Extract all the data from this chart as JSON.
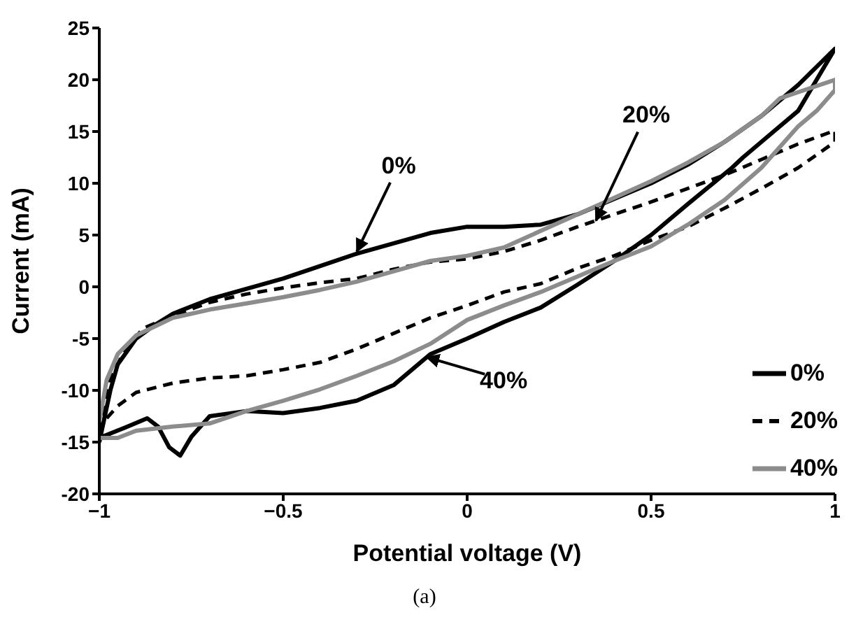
{
  "chart_data": {
    "type": "line",
    "xlabel": "Potential voltage (V)",
    "ylabel": "Current (mA)",
    "xlim": [
      -1,
      1
    ],
    "xticks": [
      {
        "value": -1,
        "label": "−1"
      },
      {
        "value": -0.5,
        "label": "−0.5"
      },
      0,
      0.5,
      1
    ],
    "ylim": [
      -20,
      25
    ],
    "yticks": [
      -20,
      -15,
      -10,
      -5,
      0,
      5,
      10,
      15,
      20,
      25
    ],
    "grid": false,
    "legend": "bottom right",
    "marker": "none",
    "series": [
      {
        "name": "0%",
        "color": "#000000",
        "line_style": "solid",
        "x": [
          -1,
          -0.97,
          -0.95,
          -0.9,
          -0.85,
          -0.8,
          -0.7,
          -0.6,
          -0.5,
          -0.4,
          -0.3,
          -0.2,
          -0.1,
          0,
          0.1,
          0.2,
          0.3,
          0.4,
          0.5,
          0.6,
          0.7,
          0.8,
          0.9,
          1,
          0.95,
          0.9,
          0.8,
          0.75,
          0.72,
          0.6,
          0.5,
          0.4,
          0.3,
          0.2,
          0.1,
          0,
          -0.1,
          -0.2,
          -0.3,
          -0.4,
          -0.5,
          -0.6,
          -0.7,
          -0.75,
          -0.78,
          -0.81,
          -0.84,
          -0.87,
          -0.93,
          -1
        ],
        "values": [
          -15,
          -10,
          -7.5,
          -5,
          -3.7,
          -2.6,
          -1.2,
          -0.2,
          0.8,
          2,
          3.2,
          4.2,
          5.2,
          5.8,
          5.8,
          6,
          7,
          8.5,
          10,
          11.8,
          14,
          16.5,
          19.5,
          23,
          20,
          17,
          14,
          12.5,
          11.5,
          8,
          5,
          2.5,
          0.2,
          -2,
          -3.4,
          -5,
          -6.5,
          -9.5,
          -11,
          -11.7,
          -12.2,
          -12,
          -12.5,
          -14.5,
          -16.3,
          -15.5,
          -13.5,
          -12.7,
          -13.6,
          -14.6
        ]
      },
      {
        "name": "20%",
        "color": "#000000",
        "line_style": "dashed",
        "x": [
          -1,
          -0.97,
          -0.93,
          -0.88,
          -0.8,
          -0.7,
          -0.6,
          -0.5,
          -0.4,
          -0.3,
          -0.2,
          -0.1,
          0,
          0.1,
          0.2,
          0.3,
          0.4,
          0.5,
          0.6,
          0.7,
          0.8,
          0.9,
          1,
          1,
          0.9,
          0.8,
          0.7,
          0.6,
          0.5,
          0.4,
          0.3,
          0.2,
          0.1,
          0,
          -0.1,
          -0.2,
          -0.3,
          -0.4,
          -0.5,
          -0.6,
          -0.7,
          -0.8,
          -0.9,
          -0.95,
          -1
        ],
        "values": [
          -14,
          -9,
          -6,
          -4,
          -2.8,
          -1.5,
          -0.7,
          -0.1,
          0.4,
          0.8,
          1.7,
          2.4,
          2.7,
          3.4,
          4.5,
          5.8,
          7,
          8.2,
          9.5,
          10.8,
          12.3,
          13.8,
          15.1,
          14,
          11.5,
          9.5,
          7.6,
          5.8,
          4.5,
          3,
          1.8,
          0.3,
          -0.5,
          -1.8,
          -3,
          -4.5,
          -6,
          -7.3,
          -8,
          -8.6,
          -8.8,
          -9.3,
          -10.2,
          -11.5,
          -13.5
        ]
      },
      {
        "name": "40%",
        "color": "#8c8c8c",
        "line_style": "solid",
        "x": [
          -1,
          -0.98,
          -0.95,
          -0.9,
          -0.8,
          -0.7,
          -0.6,
          -0.5,
          -0.4,
          -0.3,
          -0.2,
          -0.1,
          0,
          0.1,
          0.2,
          0.3,
          0.4,
          0.5,
          0.6,
          0.7,
          0.8,
          0.85,
          0.9,
          1,
          1,
          0.95,
          0.9,
          0.8,
          0.7,
          0.6,
          0.5,
          0.4,
          0.3,
          0.2,
          0.1,
          0,
          -0.1,
          -0.2,
          -0.3,
          -0.4,
          -0.5,
          -0.6,
          -0.7,
          -0.8,
          -0.9,
          -0.95,
          -1
        ],
        "values": [
          -13,
          -9,
          -6.5,
          -4.7,
          -3,
          -2.2,
          -1.6,
          -1,
          -0.3,
          0.5,
          1.5,
          2.5,
          3,
          3.8,
          5.4,
          7,
          8.6,
          10.2,
          12,
          14,
          16.5,
          18.2,
          18.8,
          20,
          19,
          17,
          15.5,
          11.5,
          8.4,
          6,
          3.9,
          2.5,
          1,
          -0.5,
          -1.8,
          -3.2,
          -5.5,
          -7.2,
          -8.6,
          -9.9,
          -11,
          -12,
          -13.2,
          -13.5,
          -13.9,
          -14.6,
          -14.6
        ]
      }
    ],
    "annotations": [
      {
        "text": "0%",
        "x": -0.3,
        "y": 3.4
      },
      {
        "text": "20%",
        "x": 0.35,
        "y": 6.4
      },
      {
        "text": "40%",
        "x": -0.11,
        "y": -6.8
      },
      "(a)"
    ]
  }
}
